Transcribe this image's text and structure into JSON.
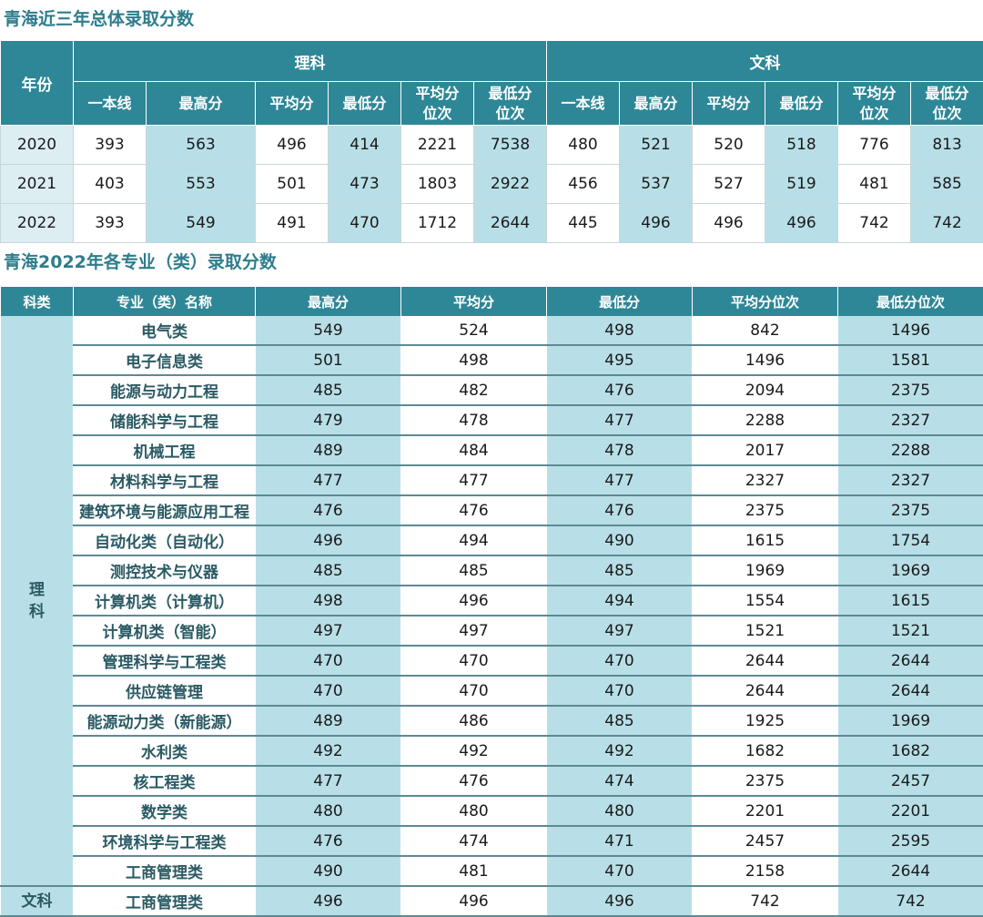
{
  "section1": {
    "title": "青海近三年总体录取分数",
    "header": {
      "year": "年份",
      "groups": [
        "理科",
        "文科"
      ],
      "columns": [
        [
          "一本线"
        ],
        [
          "最高分"
        ],
        [
          "平均分"
        ],
        [
          "最低分"
        ],
        [
          "平均分",
          "位次"
        ],
        [
          "最低分",
          "位次"
        ],
        [
          "一本线"
        ],
        [
          "最高分"
        ],
        [
          "平均分"
        ],
        [
          "最低分"
        ],
        [
          "平均分",
          "位次"
        ],
        [
          "最低分",
          "位次"
        ]
      ]
    },
    "rows": [
      {
        "year": "2020",
        "values": [
          "393",
          "563",
          "496",
          "414",
          "2221",
          "7538",
          "480",
          "521",
          "520",
          "518",
          "776",
          "813"
        ]
      },
      {
        "year": "2021",
        "values": [
          "403",
          "553",
          "501",
          "473",
          "1803",
          "2922",
          "456",
          "537",
          "527",
          "519",
          "481",
          "585"
        ]
      },
      {
        "year": "2022",
        "values": [
          "393",
          "549",
          "491",
          "470",
          "1712",
          "2644",
          "445",
          "496",
          "496",
          "496",
          "742",
          "742"
        ]
      }
    ]
  },
  "section2": {
    "title": "青海2022年各专业（类）录取分数",
    "header": [
      "科类",
      "专业（类）名称",
      "最高分",
      "平均分",
      "最低分",
      "平均分位次",
      "最低分位次"
    ],
    "groups": [
      {
        "category": "理\n科",
        "rows": [
          {
            "name": "电气类",
            "values": [
              "549",
              "524",
              "498",
              "842",
              "1496"
            ]
          },
          {
            "name": "电子信息类",
            "values": [
              "501",
              "498",
              "495",
              "1496",
              "1581"
            ]
          },
          {
            "name": "能源与动力工程",
            "values": [
              "485",
              "482",
              "476",
              "2094",
              "2375"
            ]
          },
          {
            "name": "储能科学与工程",
            "values": [
              "479",
              "478",
              "477",
              "2288",
              "2327"
            ]
          },
          {
            "name": "机械工程",
            "values": [
              "489",
              "484",
              "478",
              "2017",
              "2288"
            ]
          },
          {
            "name": "材料科学与工程",
            "values": [
              "477",
              "477",
              "477",
              "2327",
              "2327"
            ]
          },
          {
            "name": "建筑环境与能源应用工程",
            "values": [
              "476",
              "476",
              "476",
              "2375",
              "2375"
            ]
          },
          {
            "name": "自动化类（自动化）",
            "values": [
              "496",
              "494",
              "490",
              "1615",
              "1754"
            ]
          },
          {
            "name": "测控技术与仪器",
            "values": [
              "485",
              "485",
              "485",
              "1969",
              "1969"
            ]
          },
          {
            "name": "计算机类（计算机）",
            "values": [
              "498",
              "496",
              "494",
              "1554",
              "1615"
            ]
          },
          {
            "name": "计算机类（智能）",
            "values": [
              "497",
              "497",
              "497",
              "1521",
              "1521"
            ]
          },
          {
            "name": "管理科学与工程类",
            "values": [
              "470",
              "470",
              "470",
              "2644",
              "2644"
            ]
          },
          {
            "name": "供应链管理",
            "values": [
              "470",
              "470",
              "470",
              "2644",
              "2644"
            ]
          },
          {
            "name": "能源动力类（新能源）",
            "values": [
              "489",
              "486",
              "485",
              "1925",
              "1969"
            ]
          },
          {
            "name": "水利类",
            "values": [
              "492",
              "492",
              "492",
              "1682",
              "1682"
            ]
          },
          {
            "name": "核工程类",
            "values": [
              "477",
              "476",
              "474",
              "2375",
              "2457"
            ]
          },
          {
            "name": "数学类",
            "values": [
              "480",
              "480",
              "480",
              "2201",
              "2201"
            ]
          },
          {
            "name": "环境科学与工程类",
            "values": [
              "476",
              "474",
              "471",
              "2457",
              "2595"
            ]
          },
          {
            "name": "工商管理类",
            "values": [
              "490",
              "481",
              "470",
              "2158",
              "2644"
            ]
          }
        ]
      },
      {
        "category": "文科",
        "rows": [
          {
            "name": "工商管理类",
            "values": [
              "496",
              "496",
              "496",
              "742",
              "742"
            ]
          }
        ]
      }
    ]
  }
}
